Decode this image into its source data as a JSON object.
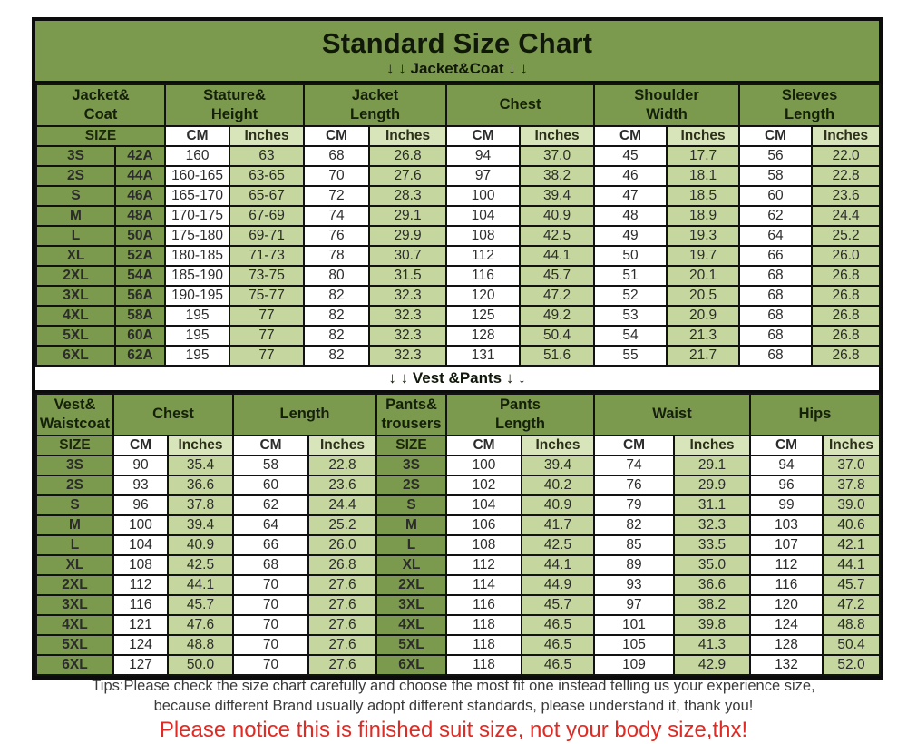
{
  "header": {
    "title": "Standard Size Chart",
    "jacket_section_label": "↓ ↓  Jacket&Coat ↓ ↓",
    "vest_section_label": "↓ ↓  Vest &Pants ↓ ↓"
  },
  "units": {
    "size": "SIZE",
    "cm": "CM",
    "inches": "Inches"
  },
  "colors": {
    "header_green": "#7c9a4d",
    "data_light_green": "#c5d79e",
    "unit_light_green": "#d8e5bb",
    "cell_white": "#ffffff",
    "border_black": "#0c0c0c",
    "notice_red": "#df2b24"
  },
  "jacket_table": {
    "groups": [
      {
        "label": "Jacket&\nCoat"
      },
      {
        "label": "Stature&\nHeight"
      },
      {
        "label": "Jacket\nLength"
      },
      {
        "label": "Chest"
      },
      {
        "label": "Shoulder\nWidth"
      },
      {
        "label": "Sleeves\nLength"
      }
    ],
    "rows": [
      [
        "3S",
        "42A",
        "160",
        "63",
        "68",
        "26.8",
        "94",
        "37.0",
        "45",
        "17.7",
        "56",
        "22.0"
      ],
      [
        "2S",
        "44A",
        "160-165",
        "63-65",
        "70",
        "27.6",
        "97",
        "38.2",
        "46",
        "18.1",
        "58",
        "22.8"
      ],
      [
        "S",
        "46A",
        "165-170",
        "65-67",
        "72",
        "28.3",
        "100",
        "39.4",
        "47",
        "18.5",
        "60",
        "23.6"
      ],
      [
        "M",
        "48A",
        "170-175",
        "67-69",
        "74",
        "29.1",
        "104",
        "40.9",
        "48",
        "18.9",
        "62",
        "24.4"
      ],
      [
        "L",
        "50A",
        "175-180",
        "69-71",
        "76",
        "29.9",
        "108",
        "42.5",
        "49",
        "19.3",
        "64",
        "25.2"
      ],
      [
        "XL",
        "52A",
        "180-185",
        "71-73",
        "78",
        "30.7",
        "112",
        "44.1",
        "50",
        "19.7",
        "66",
        "26.0"
      ],
      [
        "2XL",
        "54A",
        "185-190",
        "73-75",
        "80",
        "31.5",
        "116",
        "45.7",
        "51",
        "20.1",
        "68",
        "26.8"
      ],
      [
        "3XL",
        "56A",
        "190-195",
        "75-77",
        "82",
        "32.3",
        "120",
        "47.2",
        "52",
        "20.5",
        "68",
        "26.8"
      ],
      [
        "4XL",
        "58A",
        "195",
        "77",
        "82",
        "32.3",
        "125",
        "49.2",
        "53",
        "20.9",
        "68",
        "26.8"
      ],
      [
        "5XL",
        "60A",
        "195",
        "77",
        "82",
        "32.3",
        "128",
        "50.4",
        "54",
        "21.3",
        "68",
        "26.8"
      ],
      [
        "6XL",
        "62A",
        "195",
        "77",
        "82",
        "32.3",
        "131",
        "51.6",
        "55",
        "21.7",
        "68",
        "26.8"
      ]
    ]
  },
  "vest_table": {
    "groups": [
      {
        "label": "Vest&\nWaistcoat"
      },
      {
        "label": "Chest"
      },
      {
        "label": "Length"
      },
      {
        "label": "Pants&\ntrousers"
      },
      {
        "label": "Pants\nLength"
      },
      {
        "label": "Waist"
      },
      {
        "label": "Hips"
      }
    ],
    "rows": [
      [
        "3S",
        "90",
        "35.4",
        "58",
        "22.8",
        "3S",
        "100",
        "39.4",
        "74",
        "29.1",
        "94",
        "37.0"
      ],
      [
        "2S",
        "93",
        "36.6",
        "60",
        "23.6",
        "2S",
        "102",
        "40.2",
        "76",
        "29.9",
        "96",
        "37.8"
      ],
      [
        "S",
        "96",
        "37.8",
        "62",
        "24.4",
        "S",
        "104",
        "40.9",
        "79",
        "31.1",
        "99",
        "39.0"
      ],
      [
        "M",
        "100",
        "39.4",
        "64",
        "25.2",
        "M",
        "106",
        "41.7",
        "82",
        "32.3",
        "103",
        "40.6"
      ],
      [
        "L",
        "104",
        "40.9",
        "66",
        "26.0",
        "L",
        "108",
        "42.5",
        "85",
        "33.5",
        "107",
        "42.1"
      ],
      [
        "XL",
        "108",
        "42.5",
        "68",
        "26.8",
        "XL",
        "112",
        "44.1",
        "89",
        "35.0",
        "112",
        "44.1"
      ],
      [
        "2XL",
        "112",
        "44.1",
        "70",
        "27.6",
        "2XL",
        "114",
        "44.9",
        "93",
        "36.6",
        "116",
        "45.7"
      ],
      [
        "3XL",
        "116",
        "45.7",
        "70",
        "27.6",
        "3XL",
        "116",
        "45.7",
        "97",
        "38.2",
        "120",
        "47.2"
      ],
      [
        "4XL",
        "121",
        "47.6",
        "70",
        "27.6",
        "4XL",
        "118",
        "46.5",
        "101",
        "39.8",
        "124",
        "48.8"
      ],
      [
        "5XL",
        "124",
        "48.8",
        "70",
        "27.6",
        "5XL",
        "118",
        "46.5",
        "105",
        "41.3",
        "128",
        "50.4"
      ],
      [
        "6XL",
        "127",
        "50.0",
        "70",
        "27.6",
        "6XL",
        "118",
        "46.5",
        "109",
        "42.9",
        "132",
        "52.0"
      ]
    ]
  },
  "footer": {
    "tips_line1": "Tips:Please check the size chart carefully and choose the most fit one instead telling us your experience size,",
    "tips_line2": "because different Brand usually adopt different standards, please understand it, thank you!",
    "notice": "Please notice this is finished suit size, not your body size,thx!"
  }
}
